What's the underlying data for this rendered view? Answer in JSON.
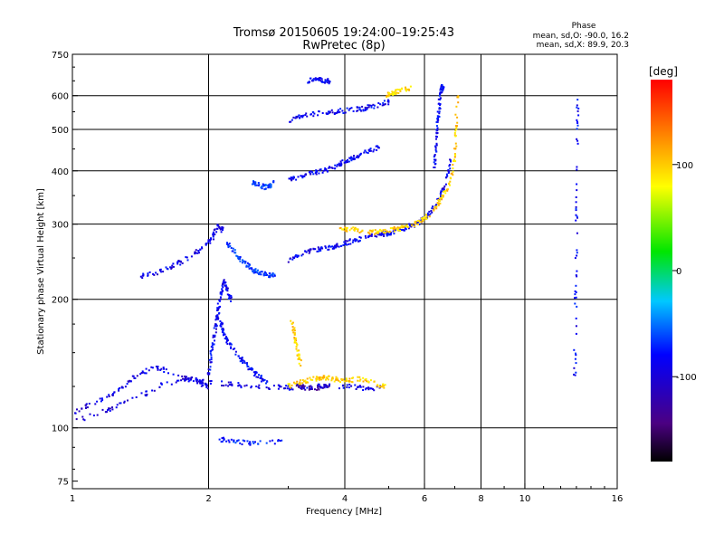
{
  "chart_data": {
    "type": "scatter",
    "title": "Tromsø 20150605 19:24:00–19:25:43",
    "subtitle": "RwPretec (8p)",
    "xlabel": "Frequency [MHz]",
    "ylabel": "Stationary phase Virtual Height [km]",
    "x_scale": "log",
    "y_scale": "log",
    "xlim": [
      1,
      16
    ],
    "ylim": [
      72,
      750
    ],
    "x_ticks": [
      1,
      2,
      4,
      6,
      8,
      10,
      16
    ],
    "y_ticks": [
      75,
      100,
      200,
      300,
      400,
      500,
      600,
      750
    ],
    "x_grid": [
      2,
      4,
      6,
      8,
      10
    ],
    "y_grid": [
      100,
      200,
      300,
      400,
      500,
      600
    ],
    "grid": true,
    "stats": {
      "heading": "Phase",
      "line_o": "mean, sd,O: -90.0, 16.2",
      "line_x": "mean, sd,X:  89.9, 20.3"
    },
    "colorbar": {
      "label": "[deg]",
      "min": -180,
      "max": 180,
      "ticks": [
        100,
        0,
        -100
      ]
    },
    "traces": [
      {
        "x": [
          1.0,
          1.2,
          1.4,
          1.6,
          1.8,
          2.0,
          2.3,
          2.6,
          3.0,
          3.5,
          4.0,
          4.4,
          4.8
        ],
        "y": [
          103,
          110,
          118,
          127,
          130,
          128,
          126,
          125,
          124,
          125,
          125,
          124,
          124
        ],
        "phase": -110
      },
      {
        "x": [
          1.0,
          1.1,
          1.25,
          1.35,
          1.5,
          1.7,
          1.9,
          2.0
        ],
        "y": [
          108,
          114,
          121,
          130,
          139,
          134,
          128,
          125
        ],
        "phase": -112
      },
      {
        "x": [
          2.0,
          2.02,
          2.05,
          2.08,
          2.1,
          2.13,
          2.16,
          2.2,
          2.25
        ],
        "y": [
          130,
          145,
          160,
          175,
          190,
          205,
          220,
          212,
          195
        ],
        "phase": -105
      },
      {
        "x": [
          2.1,
          2.15,
          2.2,
          2.3,
          2.4,
          2.5,
          2.6,
          2.7
        ],
        "y": [
          185,
          170,
          160,
          150,
          142,
          136,
          131,
          128
        ],
        "phase": -102
      },
      {
        "x": [
          1.4,
          1.55,
          1.7,
          1.85,
          1.95,
          2.05,
          2.1,
          2.15
        ],
        "y": [
          225,
          232,
          242,
          255,
          265,
          280,
          300,
          290
        ],
        "phase": -108
      },
      {
        "x": [
          2.2,
          2.3,
          2.4,
          2.5,
          2.6,
          2.7,
          2.8
        ],
        "y": [
          270,
          255,
          243,
          235,
          230,
          228,
          228
        ],
        "phase": -80
      },
      {
        "x": [
          3.0,
          3.2,
          3.4,
          3.6,
          3.8,
          4.0,
          4.2,
          4.5,
          4.8,
          5.0,
          5.3,
          5.6,
          5.9,
          6.2,
          6.5,
          6.7,
          6.9
        ],
        "y": [
          247,
          255,
          260,
          263,
          266,
          270,
          275,
          280,
          284,
          285,
          290,
          297,
          305,
          320,
          345,
          380,
          430
        ],
        "phase": -105
      },
      {
        "x": [
          3.9,
          4.1,
          4.4,
          4.7,
          5.0,
          5.3,
          5.6,
          5.9,
          6.2,
          6.5,
          6.8,
          7.0,
          7.05,
          7.1
        ],
        "y": [
          290,
          292,
          288,
          287,
          290,
          293,
          298,
          306,
          318,
          340,
          370,
          420,
          500,
          600
        ],
        "phase": 100
      },
      {
        "x": [
          6.3,
          6.35,
          6.4,
          6.45,
          6.5,
          6.55,
          6.6
        ],
        "y": [
          400,
          450,
          500,
          550,
          600,
          630,
          620
        ],
        "phase": -100
      },
      {
        "x": [
          2.5,
          2.6,
          2.7,
          2.8
        ],
        "y": [
          375,
          370,
          365,
          380
        ],
        "phase": -80
      },
      {
        "x": [
          3.0,
          3.2,
          3.4,
          3.6,
          3.8,
          4.0,
          4.2,
          4.5,
          4.8
        ],
        "y": [
          380,
          390,
          395,
          400,
          410,
          420,
          430,
          445,
          455
        ],
        "phase": -102
      },
      {
        "x": [
          3.0,
          3.2,
          3.5,
          3.8,
          4.1,
          4.4,
          4.7,
          5.0
        ],
        "y": [
          520,
          540,
          545,
          550,
          555,
          560,
          568,
          580
        ],
        "phase": -105
      },
      {
        "x": [
          4.9,
          5.1,
          5.3,
          5.6
        ],
        "y": [
          600,
          610,
          615,
          625
        ],
        "phase": 95
      },
      {
        "x": [
          3.3,
          3.45,
          3.6,
          3.75
        ],
        "y": [
          650,
          655,
          650,
          648
        ],
        "phase": -100
      },
      {
        "x": [
          3.05,
          3.1,
          3.15,
          3.2
        ],
        "y": [
          180,
          165,
          150,
          140
        ],
        "phase": 100
      },
      {
        "x": [
          3.0,
          3.2,
          3.4,
          3.6,
          3.8,
          4.0,
          4.3,
          4.6,
          4.9
        ],
        "y": [
          125,
          128,
          130,
          131,
          130,
          129,
          130,
          128,
          125
        ],
        "phase": 100
      },
      {
        "x": [
          3.1,
          3.3,
          3.5,
          3.7
        ],
        "y": [
          125,
          124,
          124,
          125
        ],
        "phase": -130
      },
      {
        "x": [
          2.1,
          2.3,
          2.5,
          2.9
        ],
        "y": [
          94,
          93,
          92,
          93
        ],
        "phase": -90
      },
      {
        "x": [
          12.9,
          12.95,
          13.0,
          13.05,
          13.1
        ],
        "y": [
          130,
          200,
          300,
          420,
          600
        ],
        "phase": -100
      }
    ]
  }
}
